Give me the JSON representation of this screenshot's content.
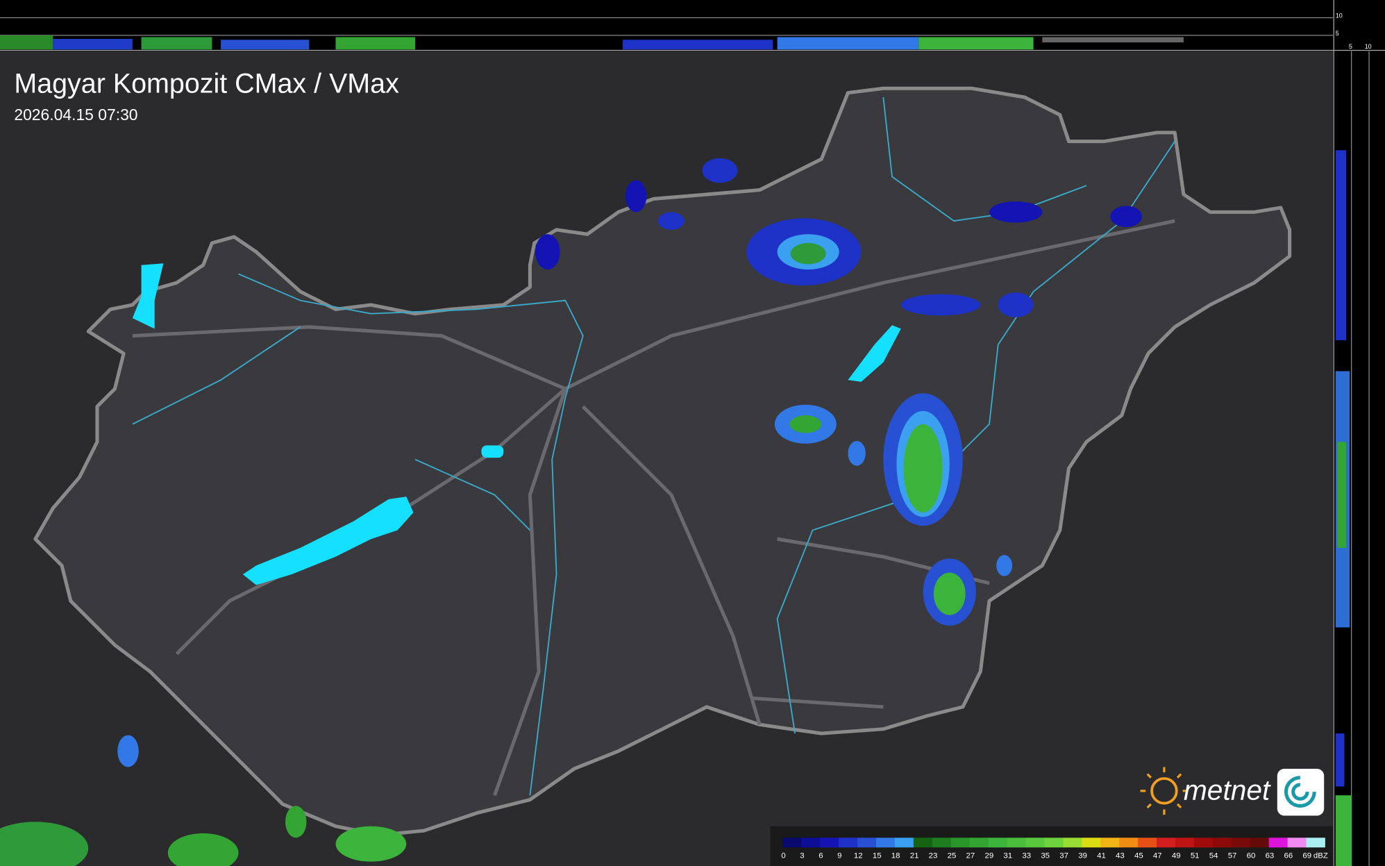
{
  "header": {
    "title": "Magyar Kompozit CMax / VMax",
    "timestamp": "2026.04.15 07:30"
  },
  "side_scale": {
    "top_labels": [
      "10",
      "5"
    ],
    "right_labels": [
      "5",
      "10"
    ]
  },
  "logo": {
    "text": "metnet"
  },
  "legend": {
    "ticks": [
      "0",
      "3",
      "6",
      "9",
      "12",
      "15",
      "18",
      "21",
      "23",
      "25",
      "27",
      "29",
      "31",
      "33",
      "35",
      "37",
      "39",
      "41",
      "43",
      "45",
      "47",
      "49",
      "51",
      "54",
      "57",
      "60",
      "63",
      "66",
      "69"
    ],
    "unit": "dBZ",
    "colors": [
      "#0a0a6e",
      "#0d0d96",
      "#1414b4",
      "#1e32c8",
      "#2850d2",
      "#3278e6",
      "#3ca0f0",
      "#146414",
      "#1e7d1e",
      "#289628",
      "#32a532",
      "#3cb43c",
      "#4bbe3c",
      "#5ac83c",
      "#6ed23c",
      "#96dc32",
      "#dcdc14",
      "#f0b414",
      "#f08c14",
      "#e65014",
      "#d21e1e",
      "#be1414",
      "#a00a0a",
      "#8c0a0a",
      "#780a0a",
      "#640a0a",
      "#dc14dc",
      "#f08cf0",
      "#aaf0f0"
    ]
  }
}
